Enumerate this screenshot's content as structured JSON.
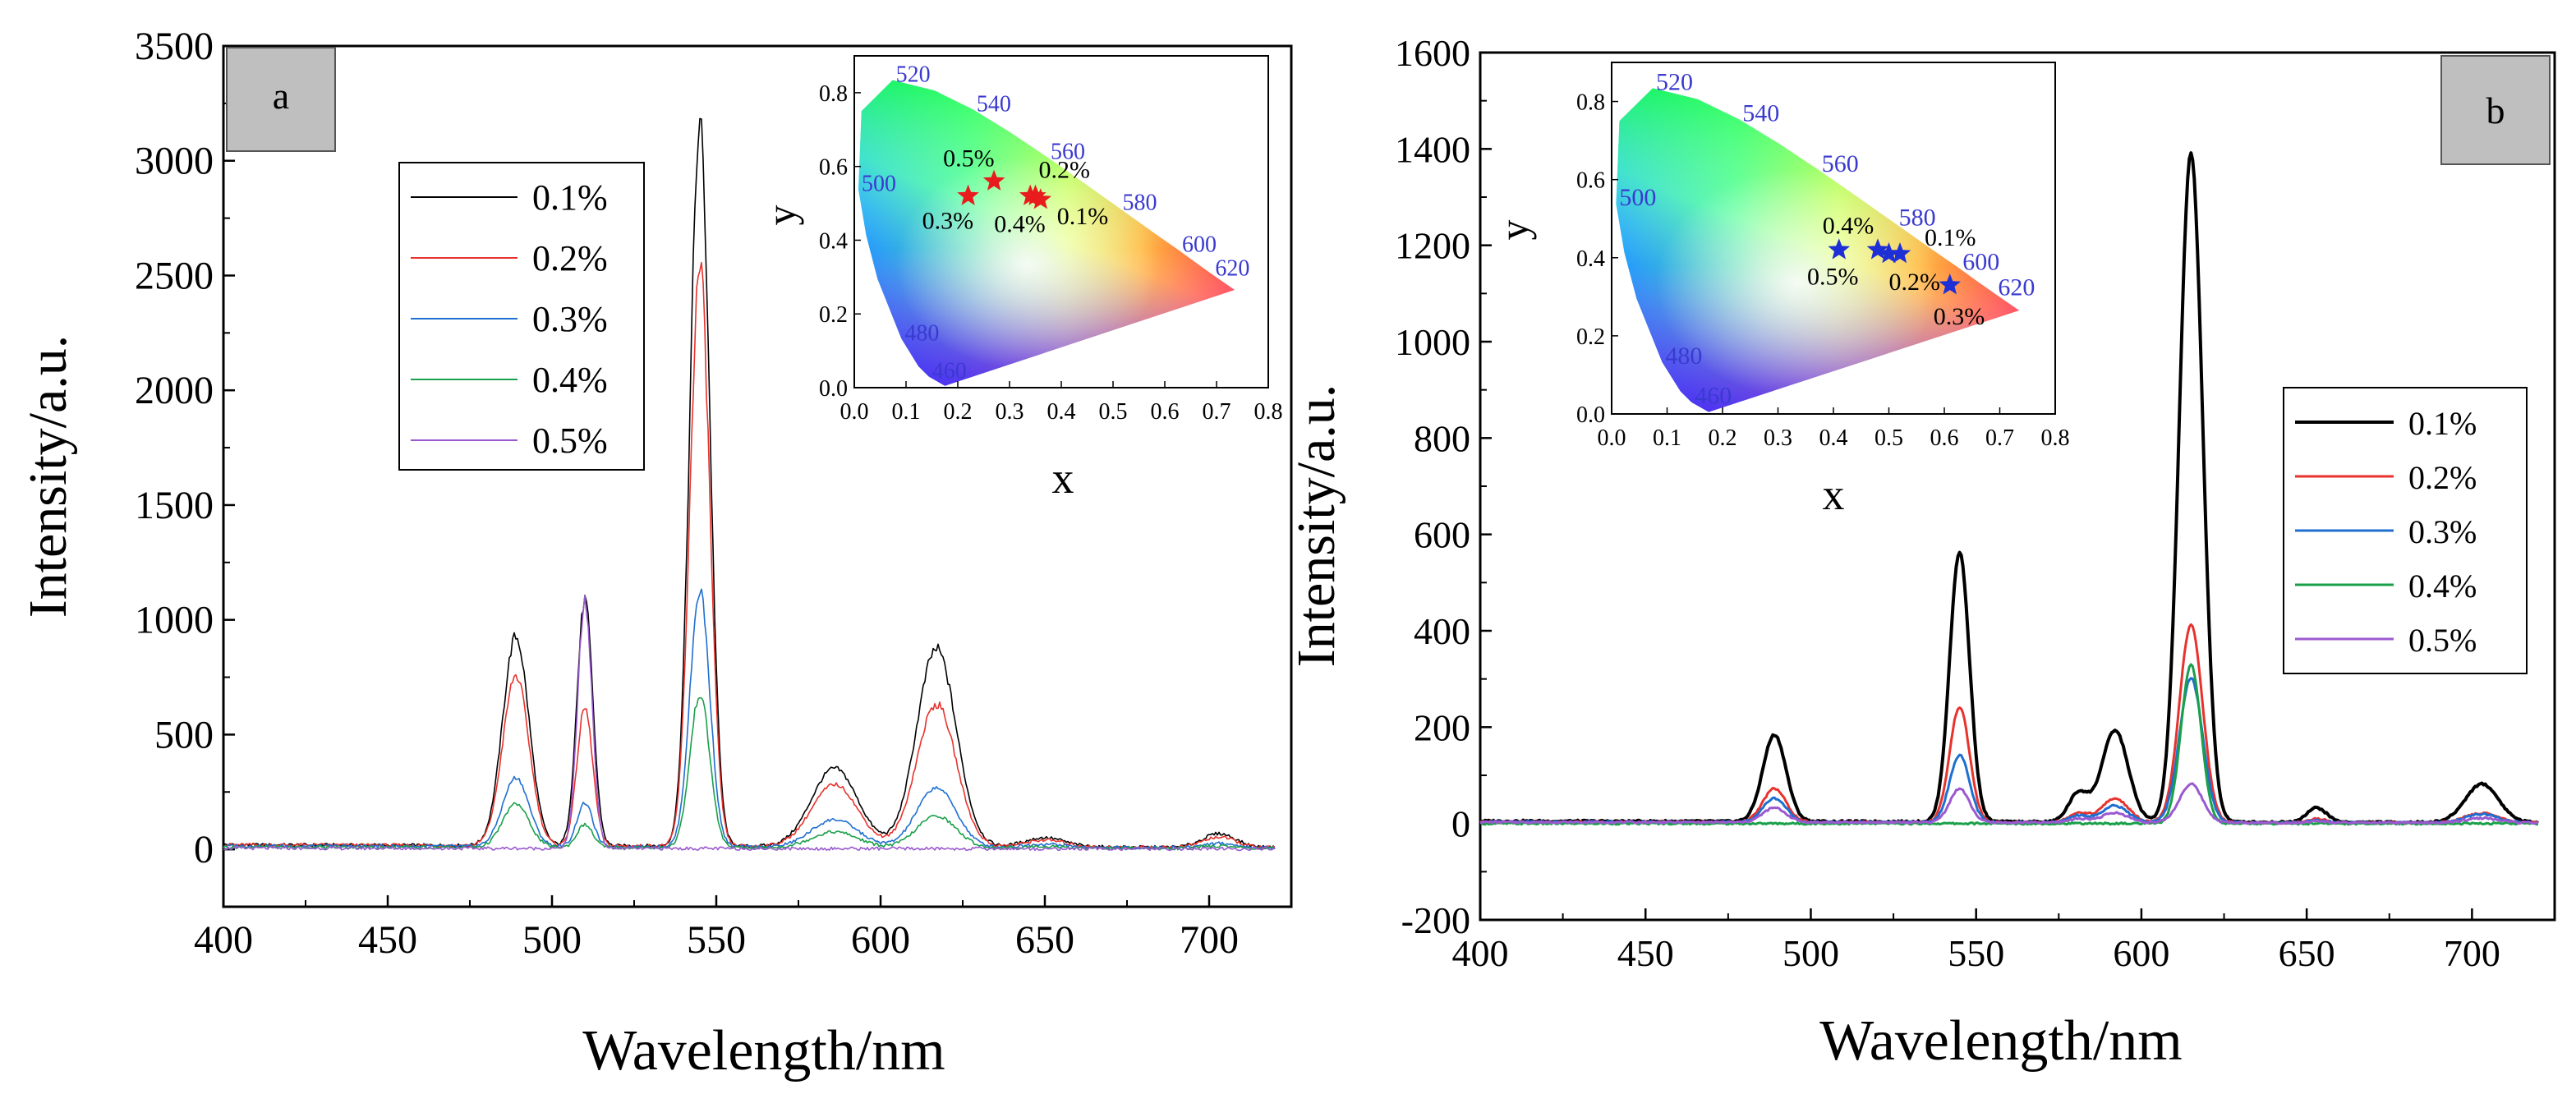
{
  "colors": {
    "c01": "#000000",
    "c02": "#e8322d",
    "c03": "#1f6fd1",
    "c04": "#1aa04a",
    "c05": "#9b59d0",
    "star_a": "#e81c1c",
    "star_b": "#1f2fd6",
    "wl_label": "#3a3ad0"
  },
  "chart_data": [
    {
      "type": "line",
      "panel_label": "a",
      "xlabel": "Wavelength/nm",
      "ylabel": "Intensity/a.u.",
      "xlim": [
        400,
        725
      ],
      "ylim": [
        -250,
        3500
      ],
      "xticks": [
        400,
        450,
        500,
        550,
        600,
        650,
        700
      ],
      "yticks": [
        0,
        500,
        1000,
        1500,
        2000,
        2500,
        3000,
        3500
      ],
      "legend_position": "upper-left",
      "peaks_note": "emission peaks near 490, 510, 545, 588, 617, 650, 705 nm",
      "series": [
        {
          "name": "0.1%",
          "baseline": 20,
          "peaks": [
            [
              489,
              910,
              4
            ],
            [
              510,
              1070,
              2.4
            ],
            [
              545,
              3140,
              3
            ],
            [
              586,
              340,
              7
            ],
            [
              617,
              860,
              6
            ],
            [
              650,
              40,
              6
            ],
            [
              703,
              60,
              5
            ]
          ]
        },
        {
          "name": "0.2%",
          "baseline": 20,
          "peaks": [
            [
              489,
              740,
              4
            ],
            [
              510,
              600,
              2.4
            ],
            [
              545,
              2520,
              3
            ],
            [
              586,
              270,
              7
            ],
            [
              617,
              620,
              6
            ],
            [
              650,
              30,
              6
            ],
            [
              703,
              45,
              5
            ]
          ]
        },
        {
          "name": "0.3%",
          "baseline": 15,
          "peaks": [
            [
              489,
              300,
              4
            ],
            [
              510,
              190,
              2.4
            ],
            [
              545,
              1120,
              3
            ],
            [
              586,
              120,
              7
            ],
            [
              617,
              260,
              6
            ],
            [
              650,
              15,
              6
            ],
            [
              703,
              20,
              5
            ]
          ]
        },
        {
          "name": "0.4%",
          "baseline": 10,
          "peaks": [
            [
              489,
              190,
              4
            ],
            [
              510,
              100,
              2.4
            ],
            [
              545,
              670,
              3
            ],
            [
              586,
              70,
              7
            ],
            [
              617,
              140,
              6
            ],
            [
              650,
              8,
              6
            ],
            [
              703,
              10,
              5
            ]
          ]
        },
        {
          "name": "0.5%",
          "baseline": 5,
          "peaks": [
            [
              489,
              0,
              4
            ],
            [
              510,
              1070,
              2.2
            ],
            [
              545,
              0,
              3
            ],
            [
              586,
              0,
              7
            ],
            [
              617,
              0,
              6
            ],
            [
              650,
              0,
              6
            ],
            [
              703,
              0,
              5
            ]
          ]
        }
      ],
      "inset": {
        "type": "scatter",
        "xlabel": "x",
        "ylabel": "y",
        "xlim": [
          0,
          0.8
        ],
        "ylim": [
          0,
          0.9
        ],
        "xticks": [
          0.0,
          0.1,
          0.2,
          0.3,
          0.4,
          0.5,
          0.6,
          0.7,
          0.8
        ],
        "yticks": [
          0.0,
          0.2,
          0.4,
          0.6,
          0.8
        ],
        "wavelength_labels": [
          {
            "text": "520",
            "x": 0.074,
            "y": 0.834
          },
          {
            "text": "540",
            "x": 0.23,
            "y": 0.754
          },
          {
            "text": "560",
            "x": 0.373,
            "y": 0.625
          },
          {
            "text": "580",
            "x": 0.512,
            "y": 0.487
          },
          {
            "text": "600",
            "x": 0.627,
            "y": 0.373
          },
          {
            "text": "620",
            "x": 0.691,
            "y": 0.308
          },
          {
            "text": "500",
            "x": 0.008,
            "y": 0.538
          },
          {
            "text": "480",
            "x": 0.091,
            "y": 0.133
          },
          {
            "text": "460",
            "x": 0.144,
            "y": 0.03
          }
        ],
        "points": [
          {
            "label": "0.5%",
            "x": 0.27,
            "y": 0.56
          },
          {
            "label": "0.3%",
            "x": 0.22,
            "y": 0.52
          },
          {
            "label": "0.2%",
            "x": 0.35,
            "y": 0.52
          },
          {
            "label": "0.4%",
            "x": 0.34,
            "y": 0.52
          },
          {
            "label": "0.1%",
            "x": 0.36,
            "y": 0.51
          }
        ]
      }
    },
    {
      "type": "line",
      "panel_label": "b",
      "xlabel": "Wavelength/nm",
      "ylabel": "Intensity/a.u.",
      "xlim": [
        400,
        725
      ],
      "ylim": [
        -200,
        1600
      ],
      "xticks": [
        400,
        450,
        500,
        550,
        600,
        650,
        700
      ],
      "yticks": [
        -200,
        0,
        200,
        400,
        600,
        800,
        1000,
        1200,
        1400,
        1600
      ],
      "legend_position": "middle-right",
      "series": [
        {
          "name": "0.1%",
          "baseline": 5,
          "peaks": [
            [
              489,
              180,
              3.5
            ],
            [
              545,
              560,
              3
            ],
            [
              581,
              60,
              3
            ],
            [
              592,
              190,
              4
            ],
            [
              615,
              1390,
              3.5
            ],
            [
              653,
              30,
              3
            ],
            [
              703,
              80,
              5
            ]
          ]
        },
        {
          "name": "0.2%",
          "baseline": 3,
          "peaks": [
            [
              489,
              70,
              3.5
            ],
            [
              545,
              240,
              3
            ],
            [
              581,
              20,
              3
            ],
            [
              592,
              50,
              4
            ],
            [
              615,
              410,
              3.5
            ],
            [
              653,
              8,
              3
            ],
            [
              703,
              20,
              5
            ]
          ]
        },
        {
          "name": "0.3%",
          "baseline": 3,
          "peaks": [
            [
              489,
              50,
              3.5
            ],
            [
              545,
              140,
              3
            ],
            [
              581,
              15,
              3
            ],
            [
              592,
              35,
              4
            ],
            [
              615,
              300,
              3.5
            ],
            [
              653,
              5,
              3
            ],
            [
              703,
              18,
              5
            ]
          ]
        },
        {
          "name": "0.4%",
          "baseline": 0,
          "peaks": [
            [
              489,
              0,
              3.5
            ],
            [
              545,
              0,
              3
            ],
            [
              581,
              0,
              3
            ],
            [
              592,
              0,
              4
            ],
            [
              615,
              330,
              3
            ],
            [
              653,
              0,
              3
            ],
            [
              703,
              0,
              5
            ]
          ]
        },
        {
          "name": "0.5%",
          "baseline": 3,
          "peaks": [
            [
              489,
              30,
              3.5
            ],
            [
              545,
              70,
              3
            ],
            [
              581,
              8,
              3
            ],
            [
              592,
              20,
              4
            ],
            [
              615,
              80,
              3.5
            ],
            [
              653,
              3,
              3
            ],
            [
              703,
              10,
              5
            ]
          ]
        }
      ],
      "inset": {
        "type": "scatter",
        "xlabel": "x",
        "ylabel": "y",
        "xlim": [
          0,
          0.8
        ],
        "ylim": [
          0,
          0.9
        ],
        "xticks": [
          0.0,
          0.1,
          0.2,
          0.3,
          0.4,
          0.5,
          0.6,
          0.7,
          0.8
        ],
        "yticks": [
          0.0,
          0.2,
          0.4,
          0.6,
          0.8
        ],
        "wavelength_labels": [
          {
            "text": "520",
            "x": 0.074,
            "y": 0.834
          },
          {
            "text": "540",
            "x": 0.23,
            "y": 0.754
          },
          {
            "text": "560",
            "x": 0.373,
            "y": 0.625
          },
          {
            "text": "580",
            "x": 0.512,
            "y": 0.487
          },
          {
            "text": "600",
            "x": 0.627,
            "y": 0.373
          },
          {
            "text": "620",
            "x": 0.691,
            "y": 0.308
          },
          {
            "text": "500",
            "x": 0.008,
            "y": 0.538
          },
          {
            "text": "480",
            "x": 0.091,
            "y": 0.133
          },
          {
            "text": "460",
            "x": 0.144,
            "y": 0.03
          }
        ],
        "points": [
          {
            "label": "0.4%",
            "x": 0.41,
            "y": 0.42
          },
          {
            "label": "0.5%",
            "x": 0.48,
            "y": 0.42
          },
          {
            "label": "0.2%",
            "x": 0.5,
            "y": 0.41
          },
          {
            "label": "0.1%",
            "x": 0.52,
            "y": 0.41
          },
          {
            "label": "0.3%",
            "x": 0.61,
            "y": 0.33
          }
        ]
      }
    }
  ]
}
